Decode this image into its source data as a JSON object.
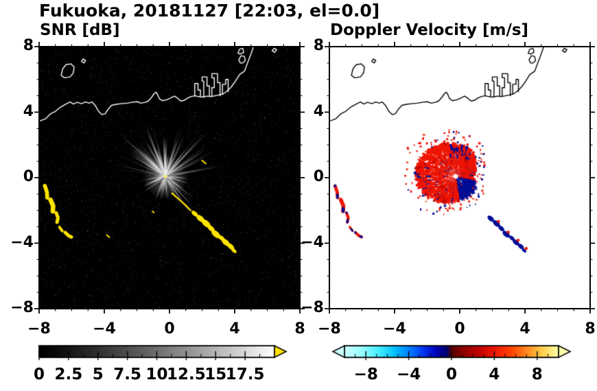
{
  "title": "Fukuoka, 20181127 [22:03, el=0.0]",
  "axis": {
    "xticks": [
      -8,
      -4,
      0,
      4,
      8
    ],
    "xtick_labels": [
      "−8",
      "−4",
      "0",
      "4",
      "8"
    ],
    "yticks": [
      8,
      4,
      0,
      -4,
      -8
    ],
    "ytick_labels": [
      "8",
      "4",
      "0",
      "−4",
      "−8"
    ],
    "minor_step": 1
  },
  "panels": [
    {
      "id": "snr",
      "title": "SNR [dB]",
      "colorbar": {
        "min": 0,
        "max": 20,
        "tick_values": [
          0,
          2.5,
          5,
          7.5,
          10,
          12.5,
          15,
          17.5
        ],
        "tick_labels": [
          "0",
          "2.5",
          "5",
          "7.5",
          "10",
          "12.5",
          "15",
          "17.5"
        ],
        "minor_step": 1.25,
        "type": "grayscale",
        "gamma": 1.2,
        "over_color": "#ffe400",
        "arrows": "right"
      }
    },
    {
      "id": "velocity",
      "title": "Doppler Velocity [m/s]",
      "colorbar": {
        "min": -10,
        "max": 10,
        "tick_values": [
          -8,
          -4,
          0,
          4,
          8
        ],
        "tick_labels": [
          "−8",
          "−4",
          "0",
          "4",
          "8"
        ],
        "minor_step": 1,
        "type": "stops",
        "stops": [
          [
            0,
            "#ccffff"
          ],
          [
            0.08,
            "#99ffff"
          ],
          [
            0.16,
            "#44eeff"
          ],
          [
            0.24,
            "#00bbff"
          ],
          [
            0.31,
            "#0077ff"
          ],
          [
            0.37,
            "#0033ee"
          ],
          [
            0.43,
            "#0000bb"
          ],
          [
            0.48,
            "#000066"
          ],
          [
            0.5,
            "#550000"
          ],
          [
            0.55,
            "#880000"
          ],
          [
            0.62,
            "#bb0000"
          ],
          [
            0.7,
            "#ee1504"
          ],
          [
            0.78,
            "#ff4400"
          ],
          [
            0.85,
            "#ff8822"
          ],
          [
            0.92,
            "#ffcc44"
          ],
          [
            1,
            "#ffffaa"
          ]
        ],
        "arrows": "both",
        "left_arrow_color": "#ccffff",
        "right_arrow_color": "#ffffaa"
      }
    }
  ],
  "chart_data": {
    "type": "heatmap",
    "site": "Fukuoka",
    "date": "20181127",
    "time": "22:03",
    "elevation_deg": 0.0,
    "panel_titles": [
      "SNR [dB]",
      "Doppler Velocity [m/s]"
    ],
    "xlim": [
      -8,
      8
    ],
    "ylim": [
      -8,
      8
    ],
    "snr_range": [
      0,
      20
    ],
    "velocity_range": [
      -10,
      10
    ],
    "radar_center": [
      -0.25,
      0.08
    ],
    "coastline": [
      [
        [
          -8,
          3.45
        ],
        [
          -7.6,
          3.6
        ],
        [
          -7.3,
          3.9
        ],
        [
          -7,
          4.05
        ],
        [
          -6.7,
          4.3
        ],
        [
          -6.35,
          4.5
        ],
        [
          -6.1,
          4.62
        ],
        [
          -5.9,
          4.5
        ],
        [
          -5.65,
          4.6
        ],
        [
          -5.4,
          4.52
        ],
        [
          -5.15,
          4.62
        ],
        [
          -4.95,
          4.55
        ],
        [
          -4.75,
          4.62
        ],
        [
          -4.55,
          4.4
        ],
        [
          -4.35,
          4.05
        ],
        [
          -4.15,
          3.85
        ],
        [
          -3.95,
          3.9
        ],
        [
          -3.75,
          4.2
        ],
        [
          -3.55,
          4.42
        ],
        [
          -3.25,
          4.48
        ],
        [
          -2.95,
          4.52
        ],
        [
          -2.6,
          4.55
        ],
        [
          -2.3,
          4.6
        ],
        [
          -2,
          4.64
        ],
        [
          -1.75,
          4.55
        ],
        [
          -1.5,
          4.6
        ],
        [
          -1.3,
          4.68
        ],
        [
          -1.1,
          4.9
        ],
        [
          -0.95,
          5.12
        ],
        [
          -0.82,
          5.22
        ],
        [
          -0.72,
          5.05
        ],
        [
          -0.62,
          4.82
        ],
        [
          -0.45,
          4.7
        ],
        [
          -0.2,
          4.75
        ],
        [
          0.05,
          4.85
        ],
        [
          0.3,
          4.98
        ],
        [
          0.5,
          4.85
        ],
        [
          0.68,
          4.68
        ],
        [
          0.9,
          4.72
        ],
        [
          1.1,
          4.85
        ],
        [
          1.3,
          4.95
        ],
        [
          1.55,
          5
        ],
        [
          1.8,
          4.95
        ],
        [
          2.05,
          4.92
        ],
        [
          2.3,
          4.98
        ],
        [
          2.55,
          4.95
        ],
        [
          2.8,
          5
        ],
        [
          3.05,
          5.05
        ],
        [
          3.3,
          5.12
        ],
        [
          3.55,
          5.3
        ],
        [
          3.8,
          5.55
        ],
        [
          4.05,
          5.9
        ],
        [
          4.3,
          6.3
        ],
        [
          4.6,
          6.5
        ],
        [
          4.75,
          6.9
        ],
        [
          4.9,
          7.3
        ],
        [
          5.05,
          7.7
        ],
        [
          5.15,
          8
        ]
      ],
      [
        [
          1.55,
          5
        ],
        [
          1.55,
          5.75
        ],
        [
          1.75,
          5.75
        ],
        [
          1.75,
          5.35
        ],
        [
          1.9,
          5.35
        ],
        [
          1.9,
          5
        ]
      ],
      [
        [
          2.1,
          4.95
        ],
        [
          2.1,
          5.9
        ],
        [
          2,
          5.9
        ],
        [
          2,
          6.15
        ],
        [
          2.3,
          6.15
        ],
        [
          2.3,
          5.6
        ],
        [
          2.45,
          5.6
        ],
        [
          2.45,
          4.98
        ]
      ],
      [
        [
          2.6,
          4.97
        ],
        [
          2.6,
          5.5
        ],
        [
          2.75,
          5.5
        ],
        [
          2.75,
          6.1
        ],
        [
          2.6,
          6.1
        ],
        [
          2.6,
          6.35
        ],
        [
          2.95,
          6.35
        ],
        [
          2.95,
          5.8
        ],
        [
          3.1,
          5.8
        ],
        [
          3.1,
          5
        ]
      ],
      [
        [
          3.25,
          5.1
        ],
        [
          3.25,
          5.7
        ],
        [
          3.45,
          5.7
        ],
        [
          3.45,
          6
        ],
        [
          3.6,
          6
        ],
        [
          3.6,
          5.25
        ]
      ],
      [
        [
          4.35,
          7
        ],
        [
          4.25,
          7.2
        ],
        [
          4.4,
          7.45
        ],
        [
          4.6,
          7.4
        ],
        [
          4.65,
          7.15
        ],
        [
          4.5,
          7
        ],
        [
          4.35,
          7
        ]
      ],
      [
        [
          4.2,
          7.6
        ],
        [
          4.3,
          7.85
        ],
        [
          4.5,
          7.9
        ],
        [
          4.55,
          7.65
        ],
        [
          4.35,
          7.55
        ],
        [
          4.2,
          7.6
        ]
      ],
      [
        [
          -6.65,
          6.25
        ],
        [
          -6.55,
          6.65
        ],
        [
          -6.35,
          6.9
        ],
        [
          -6.05,
          6.95
        ],
        [
          -5.85,
          6.75
        ],
        [
          -5.9,
          6.4
        ],
        [
          -6.1,
          6.15
        ],
        [
          -6.45,
          6.1
        ],
        [
          -6.65,
          6.25
        ]
      ],
      [
        [
          -5.4,
          7.1
        ],
        [
          -5.3,
          7.25
        ],
        [
          -5.15,
          7.15
        ],
        [
          -5.25,
          7
        ],
        [
          -5.4,
          7.1
        ]
      ],
      [
        [
          6.3,
          7.75
        ],
        [
          6.42,
          7.9
        ],
        [
          6.58,
          7.82
        ],
        [
          6.45,
          7.65
        ],
        [
          6.3,
          7.75
        ]
      ]
    ],
    "echo_arcs": [
      {
        "pts": [
          [
            -7.65,
            -0.5
          ],
          [
            -7.52,
            -0.88
          ],
          [
            -7.5,
            -1.22
          ]
        ],
        "w": 0.17
      },
      {
        "pts": [
          [
            -7.3,
            -1.35
          ],
          [
            -7.14,
            -1.72
          ],
          [
            -7.16,
            -2.05
          ]
        ],
        "w": 0.2
      },
      {
        "pts": [
          [
            -6.95,
            -2.15
          ],
          [
            -6.84,
            -2.45
          ],
          [
            -6.9,
            -2.72
          ]
        ],
        "w": 0.15
      },
      {
        "pts": [
          [
            -6.75,
            -3.02
          ],
          [
            -6.58,
            -3.25
          ]
        ],
        "w": 0.12
      },
      {
        "pts": [
          [
            -6.4,
            -3.35
          ],
          [
            -6.18,
            -3.55
          ],
          [
            -6.02,
            -3.62
          ]
        ],
        "w": 0.15
      }
    ],
    "echo_chain": [
      [
        1.55,
        -2.2,
        0.16
      ],
      [
        1.9,
        -2.5,
        0.2
      ],
      [
        2.25,
        -2.8,
        0.22
      ],
      [
        2.55,
        -3.1,
        0.18
      ],
      [
        2.85,
        -3.45,
        0.22
      ],
      [
        3.2,
        -3.7,
        0.16
      ],
      [
        3.45,
        -3.95,
        0.2
      ],
      [
        3.75,
        -4.2,
        0.18
      ],
      [
        3.95,
        -4.45,
        0.13
      ]
    ],
    "snr": {
      "seed": 7,
      "background": "#000000",
      "echo_color": "#ffe400",
      "speckle_count": 6500,
      "clutter_fan": {
        "ray_count": 175,
        "bright_ray_count": 16,
        "max_radius": 3.2
      },
      "echo_line": [
        [
          0.15,
          -0.95
        ],
        [
          0.55,
          -1.3
        ],
        [
          0.95,
          -1.65
        ],
        [
          1.3,
          -2.0
        ]
      ],
      "specks": [
        [
          -3.85,
          -3.5,
          0.22
        ],
        [
          2.0,
          1.05,
          0.3
        ],
        [
          -1.05,
          -2.05,
          0.12
        ]
      ]
    },
    "velocity": {
      "seed": 11,
      "background": "#ffffff",
      "pos_color": "#ee1504",
      "neg_color": "#000e96",
      "fan": {
        "cells": 3400,
        "base_radius": 1.0,
        "lobes": [
          [
            150,
            50,
            1.35
          ],
          [
            60,
            28,
            0.55
          ],
          [
            255,
            35,
            0.45
          ],
          [
            -40,
            22,
            0.3
          ],
          [
            200,
            25,
            0.35
          ]
        ],
        "neg_sector": [
          -80,
          -12
        ],
        "neg_patch_sector": [
          55,
          100
        ],
        "outliers": 170
      },
      "chain_start_index": 1
    }
  }
}
